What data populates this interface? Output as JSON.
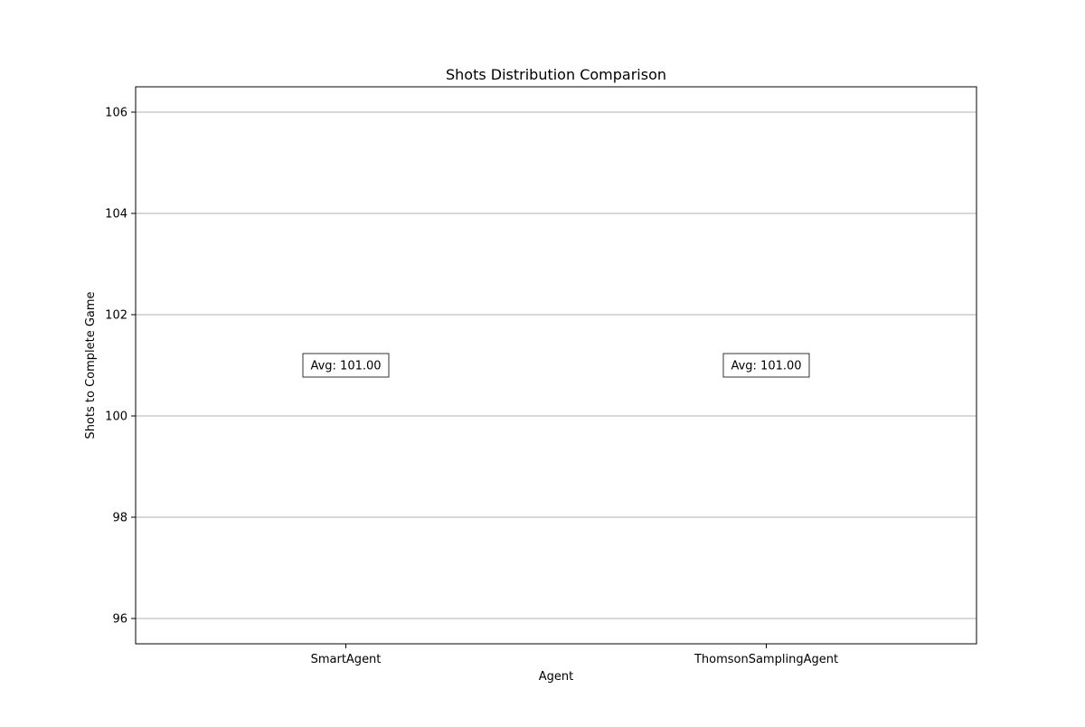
{
  "chart_data": {
    "type": "box",
    "title": "Shots Distribution Comparison",
    "xlabel": "Agent",
    "ylabel": "Shots to Complete Game",
    "categories": [
      "SmartAgent",
      "ThomsonSamplingAgent"
    ],
    "series": [
      {
        "values": [
          101,
          101
        ]
      }
    ],
    "annotations": [
      {
        "category": "SmartAgent",
        "text": "Avg: 101.00",
        "y": 101
      },
      {
        "category": "ThomsonSamplingAgent",
        "text": "Avg: 101.00",
        "y": 101
      }
    ],
    "ylim": [
      95.5,
      106.5
    ],
    "yticks": [
      96,
      98,
      100,
      102,
      104,
      106
    ],
    "grid": "y-major",
    "legend": "none"
  },
  "colors": {
    "grid": "#b0b0b0",
    "axis": "#000000",
    "box_median": "#ff7f0e",
    "label_box_border": "#333333",
    "label_box_fill": "#ffffff"
  }
}
